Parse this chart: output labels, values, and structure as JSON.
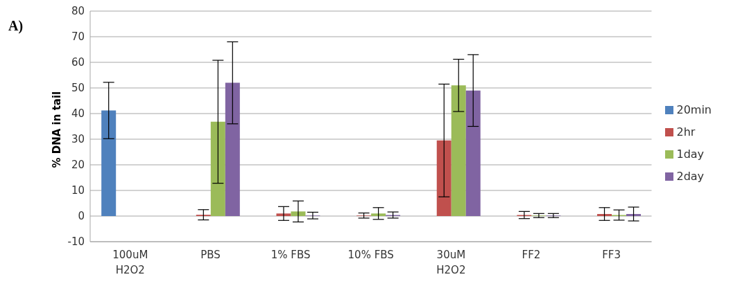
{
  "chart_data": {
    "type": "bar",
    "title": "A)",
    "ylabel": "% DNA in tail",
    "categories": [
      "100uM\nH2O2",
      "PBS",
      "1% FBS",
      "10% FBS",
      "30uM\nH2O2",
      "FF2",
      "FF3"
    ],
    "series": [
      {
        "name": "20min",
        "color": "#4f81bd",
        "values": [
          41.2,
          null,
          null,
          null,
          null,
          null,
          null
        ],
        "errors": [
          11,
          null,
          null,
          null,
          null,
          null,
          null
        ]
      },
      {
        "name": "2hr",
        "color": "#c0504d",
        "values": [
          null,
          0.5,
          1,
          0.2,
          29.5,
          0.4,
          0.8
        ],
        "errors": [
          null,
          2,
          2.7,
          1,
          22,
          1.4,
          2.5
        ]
      },
      {
        "name": "1day",
        "color": "#9bbb59",
        "values": [
          null,
          36.8,
          1.8,
          1,
          51,
          0.2,
          0.4
        ],
        "errors": [
          null,
          24,
          4.1,
          2.3,
          10.2,
          0.8,
          2
        ]
      },
      {
        "name": "2day",
        "color": "#8064a2",
        "values": [
          null,
          52,
          0.2,
          0.4,
          49,
          0.2,
          0.8
        ],
        "errors": [
          null,
          16,
          1.3,
          1.2,
          14,
          0.8,
          2.7
        ]
      }
    ],
    "ylim": [
      -10,
      80
    ],
    "yticks": [
      -10,
      0,
      10,
      20,
      30,
      40,
      50,
      60,
      70,
      80
    ],
    "grid": "y",
    "legend": "right"
  }
}
